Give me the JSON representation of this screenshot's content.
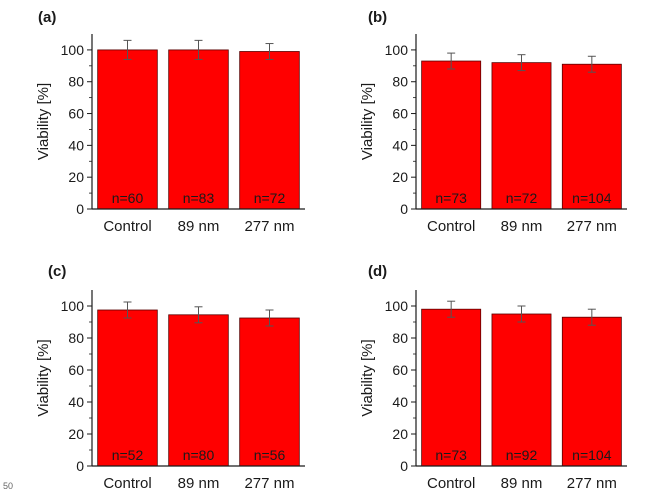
{
  "figure_note": "50",
  "chart_data": [
    {
      "panel_label": "(a)",
      "type": "bar",
      "categories": [
        "Control",
        "89 nm",
        "277 nm"
      ],
      "values": [
        100,
        100,
        99
      ],
      "errors": [
        6,
        6,
        5
      ],
      "annotations": [
        "n=60",
        "n=83",
        "n=72"
      ],
      "ylabel": "Viability [%]",
      "ylim": [
        0,
        110
      ],
      "yticks": [
        0,
        20,
        40,
        60,
        80,
        100
      ],
      "bar_color": "#ff0000",
      "grid": false
    },
    {
      "panel_label": "(b)",
      "type": "bar",
      "categories": [
        "Control",
        "89 nm",
        "277 nm"
      ],
      "values": [
        93,
        92,
        91
      ],
      "errors": [
        5,
        5,
        5
      ],
      "annotations": [
        "n=73",
        "n=72",
        "n=104"
      ],
      "ylabel": "Viability [%]",
      "ylim": [
        0,
        110
      ],
      "yticks": [
        0,
        20,
        40,
        60,
        80,
        100
      ],
      "bar_color": "#ff0000",
      "grid": false
    },
    {
      "panel_label": "(c)",
      "type": "bar",
      "categories": [
        "Control",
        "89 nm",
        "277 nm"
      ],
      "values": [
        97.5,
        94.5,
        92.5
      ],
      "errors": [
        5,
        5,
        5
      ],
      "annotations": [
        "n=52",
        "n=80",
        "n=56"
      ],
      "ylabel": "Viability [%]",
      "ylim": [
        0,
        110
      ],
      "yticks": [
        0,
        20,
        40,
        60,
        80,
        100
      ],
      "bar_color": "#ff0000",
      "grid": false
    },
    {
      "panel_label": "(d)",
      "type": "bar",
      "categories": [
        "Control",
        "89 nm",
        "277 nm"
      ],
      "values": [
        98,
        95,
        93
      ],
      "errors": [
        5,
        5,
        5
      ],
      "annotations": [
        "n=73",
        "n=92",
        "n=104"
      ],
      "ylabel": "Viability [%]",
      "ylim": [
        0,
        110
      ],
      "yticks": [
        0,
        20,
        40,
        60,
        80,
        100
      ],
      "bar_color": "#ff0000",
      "grid": false
    }
  ]
}
